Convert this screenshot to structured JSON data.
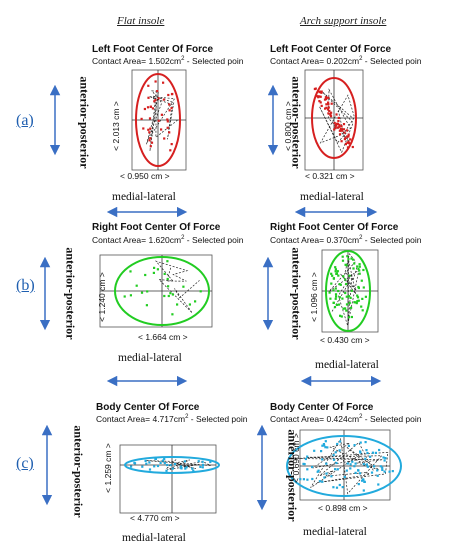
{
  "columns": {
    "left": "Flat insole",
    "right": "Arch support insole"
  },
  "rows": [
    {
      "label": "(a)",
      "left": {
        "title": "Left Foot Center Of Force",
        "contact": "Contact Area= 1.502cm",
        "suffix": " - Selected poin",
        "vdim": "< 2.013 cm >",
        "hdim": "< 0.950 cm >",
        "color": "#d62020"
      },
      "right": {
        "title": "Left Foot Center Of Force",
        "contact": "Contact Area= 0.202cm",
        "suffix": " - Selected poin",
        "vdim": "< 0.800 cm >",
        "hdim": "< 0.321 cm >",
        "color": "#d62020"
      }
    },
    {
      "label": "(b)",
      "left": {
        "title": "Right Foot Center Of Force",
        "contact": "Contact Area= 1.620cm",
        "suffix": " - Selected poin",
        "vdim": "< 1.240 cm >",
        "hdim": "< 1.664 cm >",
        "color": "#22cc22"
      },
      "right": {
        "title": "Right Foot Center Of Force",
        "contact": "Contact Area= 0.370cm",
        "suffix": " - Selected poin",
        "vdim": "< 1.096 cm >",
        "hdim": "< 0.430 cm >",
        "color": "#22cc22"
      }
    },
    {
      "label": "(c)",
      "left": {
        "title": "Body Center Of Force",
        "contact": "Contact Area= 4.717cm",
        "suffix": " - Selected poin",
        "vdim": "< 1.259 cm >",
        "hdim": "< 4.770 cm >",
        "color": "#22aadd"
      },
      "right": {
        "title": "Body Center Of Force",
        "contact": "Contact Area= 0.424cm",
        "suffix": " - Selected poin",
        "vdim": "< 0.690 cm >",
        "hdim": "< 0.898 cm >",
        "color": "#22aadd"
      }
    }
  ],
  "axis": {
    "vertical": "anterior-posterior",
    "horizontal": "medial-lateral",
    "area_unit_exp": "2"
  },
  "arrow_color": "#3a6fc4"
}
